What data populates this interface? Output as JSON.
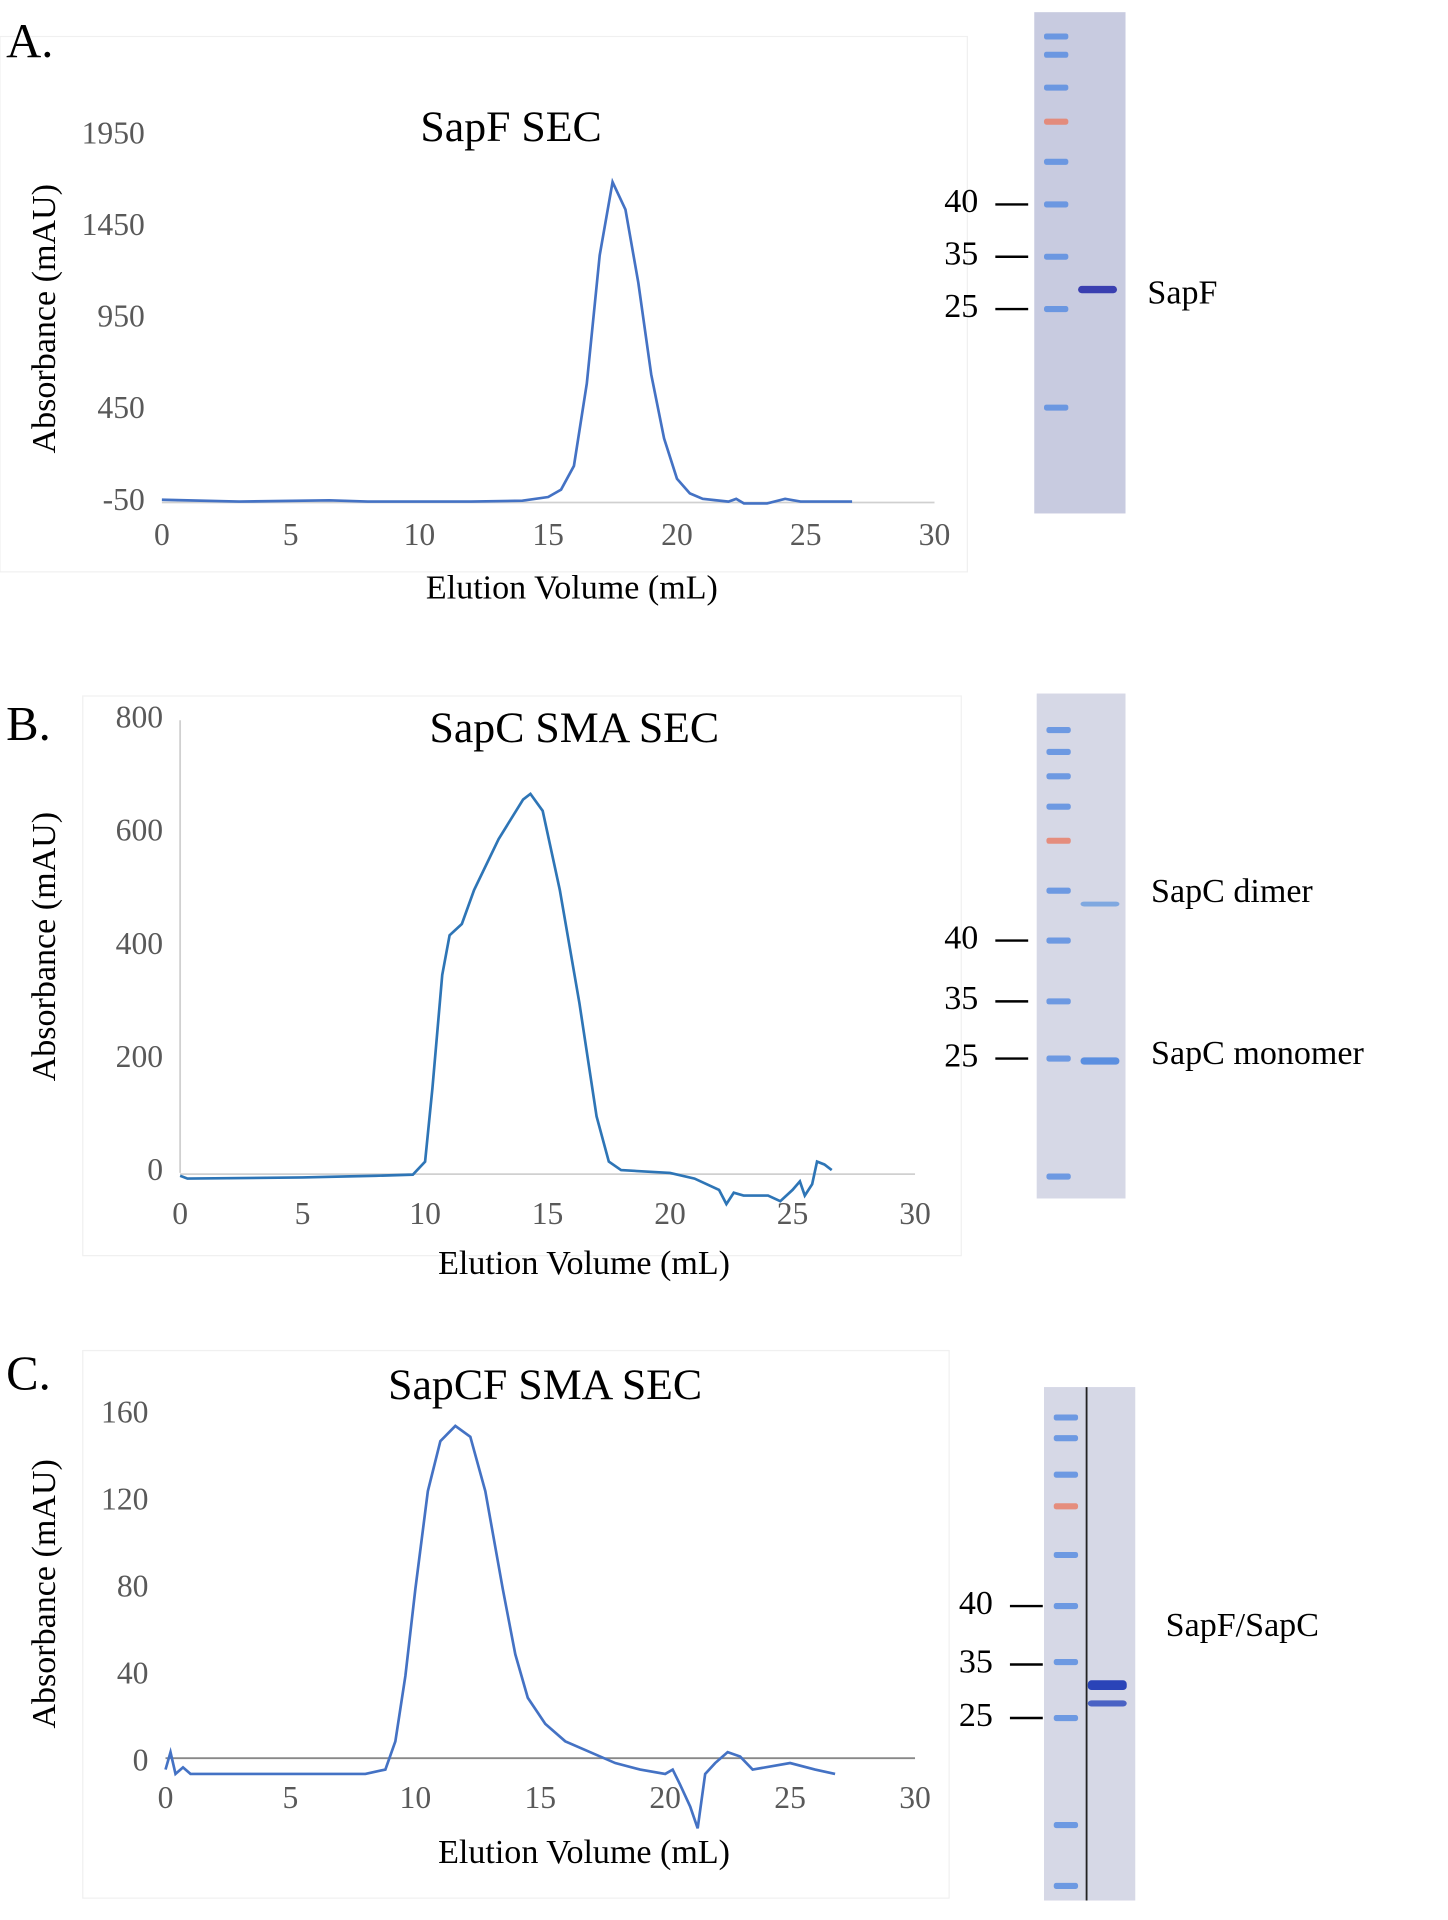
{
  "chart_data": [
    {
      "type": "line",
      "panel_label": "A.",
      "title": "SapF SEC",
      "x_label": "Elution Volume (mL)",
      "y_label": "Absorbance (mAU)",
      "xlim": [
        0,
        30
      ],
      "xticks": [
        0,
        5,
        10,
        15,
        20,
        25,
        30
      ],
      "ylim": [
        -50,
        1950
      ],
      "yticks": [
        -50,
        450,
        950,
        1450,
        1950
      ],
      "color": "#4472c4",
      "x": [
        0,
        3,
        6.5,
        8,
        12,
        14,
        15,
        15.5,
        16,
        16.5,
        17,
        17.5,
        18,
        18.5,
        19,
        19.5,
        20,
        20.5,
        21,
        22,
        22.3,
        22.6,
        23.5,
        24.2,
        24.8,
        26.8
      ],
      "values": [
        -35,
        -45,
        -38,
        -45,
        -45,
        -40,
        -20,
        20,
        150,
        600,
        1300,
        1700,
        1550,
        1150,
        650,
        300,
        80,
        0,
        -30,
        -45,
        -30,
        -55,
        -55,
        -30,
        -45,
        -45
      ],
      "gel": {
        "markers": [
          40,
          35,
          25
        ],
        "bands": [
          "SapF"
        ]
      }
    },
    {
      "type": "line",
      "panel_label": "B.",
      "title": "SapC SMA SEC",
      "x_label": "Elution Volume (mL)",
      "y_label": "Absorbance (mAU)",
      "xlim": [
        0,
        30
      ],
      "xticks": [
        0,
        5,
        10,
        15,
        20,
        25,
        30
      ],
      "ylim": [
        0,
        800
      ],
      "yticks": [
        0,
        200,
        400,
        600,
        800
      ],
      "color": "#2e75b6",
      "x": [
        0,
        0.3,
        5,
        8,
        9.5,
        10,
        10.3,
        10.7,
        11,
        11.5,
        12,
        13,
        14,
        14.3,
        14.8,
        15.5,
        16.3,
        17,
        17.5,
        18,
        20,
        21,
        22,
        22.3,
        22.6,
        23,
        24,
        24.5,
        25,
        25.3,
        25.5,
        25.8,
        26,
        26.3,
        26.6
      ],
      "values": [
        -5,
        -10,
        -8,
        -5,
        -3,
        20,
        150,
        350,
        420,
        440,
        500,
        590,
        660,
        670,
        640,
        500,
        300,
        100,
        20,
        5,
        0,
        -10,
        -30,
        -55,
        -35,
        -40,
        -40,
        -50,
        -30,
        -15,
        -40,
        -20,
        20,
        15,
        5
      ],
      "gel": {
        "markers": [
          40,
          35,
          25
        ],
        "bands": [
          "SapC dimer",
          "SapC monomer"
        ]
      }
    },
    {
      "type": "line",
      "panel_label": "C.",
      "title": "SapCF SMA SEC",
      "x_label": "Elution Volume (mL)",
      "y_label": "Absorbance (mAU)",
      "xlim": [
        0,
        30
      ],
      "xticks": [
        0,
        5,
        10,
        15,
        20,
        25,
        30
      ],
      "ylim": [
        0,
        160
      ],
      "yticks": [
        0,
        40,
        80,
        120,
        160
      ],
      "color": "#4472c4",
      "x": [
        0,
        0.2,
        0.4,
        0.7,
        1,
        5,
        8,
        8.8,
        9.2,
        9.6,
        10,
        10.5,
        11,
        11.6,
        12.2,
        12.8,
        13.5,
        14,
        14.5,
        15.2,
        16,
        17,
        18,
        19,
        20,
        20.3,
        20.6,
        21,
        21.3,
        21.6,
        22,
        22.5,
        23,
        23.5,
        25,
        26,
        26.8
      ],
      "values": [
        -3,
        5,
        -5,
        -2,
        -5,
        -5,
        -5,
        -3,
        10,
        40,
        80,
        125,
        148,
        155,
        150,
        125,
        80,
        50,
        30,
        18,
        10,
        5,
        0,
        -3,
        -5,
        -3,
        -10,
        -20,
        -30,
        -5,
        0,
        5,
        3,
        -3,
        0,
        -3,
        -5
      ],
      "gel": {
        "markers": [
          40,
          35,
          25
        ],
        "bands": [
          "SapF/SapC"
        ]
      }
    }
  ]
}
